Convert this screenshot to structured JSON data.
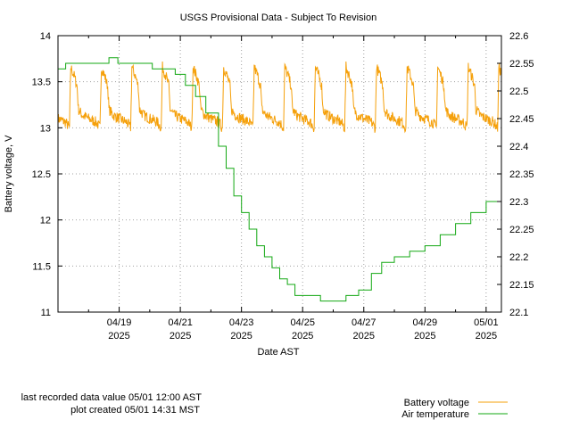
{
  "chart_data": {
    "type": "line",
    "title": "USGS Provisional Data - Subject To Revision",
    "xlabel": "Date AST",
    "ylabel": "Battery voltage, V",
    "y2label": "",
    "xlim": [
      "2025-04-17 00:00",
      "2025-05-01 12:00"
    ],
    "ylim": [
      11,
      14
    ],
    "y2lim": [
      22.1,
      22.6
    ],
    "grid": true,
    "legend_position": "bottom-right",
    "x_ticks": [
      {
        "date": "2025-04-19",
        "label1": "04/19",
        "label2": "2025"
      },
      {
        "date": "2025-04-21",
        "label1": "04/21",
        "label2": "2025"
      },
      {
        "date": "2025-04-23",
        "label1": "04/23",
        "label2": "2025"
      },
      {
        "date": "2025-04-25",
        "label1": "04/25",
        "label2": "2025"
      },
      {
        "date": "2025-04-27",
        "label1": "04/27",
        "label2": "2025"
      },
      {
        "date": "2025-04-29",
        "label1": "04/29",
        "label2": "2025"
      },
      {
        "date": "2025-05-01",
        "label1": "05/01",
        "label2": "2025"
      }
    ],
    "y_ticks": [
      "11",
      "11.5",
      "12",
      "12.5",
      "13",
      "13.5",
      "14"
    ],
    "y2_ticks": [
      "22.1",
      "22.15",
      "22.2",
      "22.25",
      "22.3",
      "22.35",
      "22.4",
      "22.45",
      "22.5",
      "22.55",
      "22.6"
    ],
    "series": [
      {
        "name": "Battery voltage",
        "axis": "left",
        "color": "#f5a00a",
        "daily_pattern": {
          "first_day": "2025-04-17",
          "days": 15,
          "peak_V": 13.65,
          "morning_dip_V": 13.0,
          "night_low_V": 13.08,
          "noise_V": 0.06,
          "shape": [
            {
              "hour": 0,
              "V": 13.1
            },
            {
              "hour": 6,
              "V": 13.06
            },
            {
              "hour": 8,
              "V": 13.02
            },
            {
              "hour": 9,
              "V": 13.0
            },
            {
              "hour": 10,
              "V": 13.66
            },
            {
              "hour": 13,
              "V": 13.55
            },
            {
              "hour": 15,
              "V": 13.45
            },
            {
              "hour": 16,
              "V": 13.2
            },
            {
              "hour": 19,
              "V": 13.14
            },
            {
              "hour": 24,
              "V": 13.1
            }
          ]
        }
      },
      {
        "name": "Air temperature",
        "axis": "right",
        "color": "#13a813",
        "points": [
          [
            "2025-04-17 00:00",
            22.54
          ],
          [
            "2025-04-17 06:00",
            22.55
          ],
          [
            "2025-04-18 12:00",
            22.55
          ],
          [
            "2025-04-18 16:00",
            22.56
          ],
          [
            "2025-04-18 23:00",
            22.55
          ],
          [
            "2025-04-19 12:00",
            22.55
          ],
          [
            "2025-04-20 00:00",
            22.55
          ],
          [
            "2025-04-20 02:00",
            22.54
          ],
          [
            "2025-04-20 20:00",
            22.53
          ],
          [
            "2025-04-21 04:00",
            22.51
          ],
          [
            "2025-04-21 12:00",
            22.49
          ],
          [
            "2025-04-21 20:00",
            22.46
          ],
          [
            "2025-04-22 06:00",
            22.4
          ],
          [
            "2025-04-22 12:00",
            22.36
          ],
          [
            "2025-04-22 18:00",
            22.31
          ],
          [
            "2025-04-23 00:00",
            22.28
          ],
          [
            "2025-04-23 06:00",
            22.25
          ],
          [
            "2025-04-23 12:00",
            22.22
          ],
          [
            "2025-04-23 18:00",
            22.2
          ],
          [
            "2025-04-24 00:00",
            22.18
          ],
          [
            "2025-04-24 06:00",
            22.16
          ],
          [
            "2025-04-24 12:00",
            22.15
          ],
          [
            "2025-04-24 18:00",
            22.13
          ],
          [
            "2025-04-25 12:00",
            22.13
          ],
          [
            "2025-04-25 14:00",
            22.12
          ],
          [
            "2025-04-26 08:00",
            22.12
          ],
          [
            "2025-04-26 10:00",
            22.13
          ],
          [
            "2025-04-26 20:00",
            22.14
          ],
          [
            "2025-04-27 06:00",
            22.17
          ],
          [
            "2025-04-27 14:00",
            22.19
          ],
          [
            "2025-04-28 00:00",
            22.2
          ],
          [
            "2025-04-28 12:00",
            22.21
          ],
          [
            "2025-04-29 00:00",
            22.22
          ],
          [
            "2025-04-29 12:00",
            22.24
          ],
          [
            "2025-04-30 00:00",
            22.26
          ],
          [
            "2025-04-30 12:00",
            22.28
          ],
          [
            "2025-05-01 00:00",
            22.3
          ],
          [
            "2025-05-01 12:00",
            22.31
          ]
        ]
      }
    ]
  },
  "footer": {
    "last_value": "last recorded data value 05/01 12:00 AST",
    "plot_created": "plot created 05/01 14:31 MST"
  }
}
